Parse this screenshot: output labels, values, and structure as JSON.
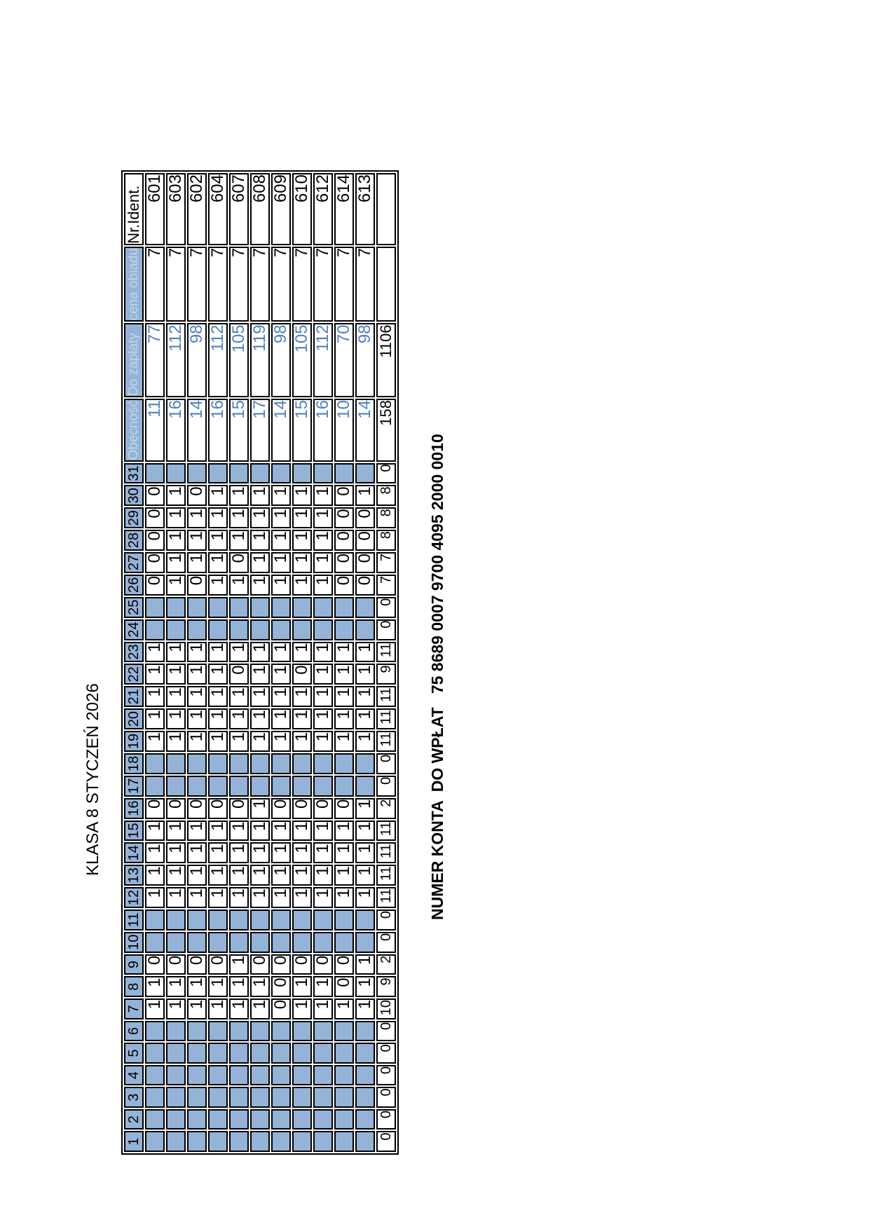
{
  "page": {
    "title": "KLASA 8 STYCZEŃ 2026",
    "footer": "NUMER KONTA  DO WPŁAT   75 8689 0007 9700 4095 2000 0010"
  },
  "colors": {
    "closed_cell_bg": "#95B3D7",
    "section_header_bg": "#95B3D7",
    "section_header_text": "#C2D4E9",
    "blue_value_text": "#4F81BD",
    "grid_border": "#000000",
    "black_text": "#000000"
  },
  "table": {
    "days": [
      1,
      2,
      3,
      4,
      5,
      6,
      7,
      8,
      9,
      10,
      11,
      12,
      13,
      14,
      15,
      16,
      17,
      18,
      19,
      20,
      21,
      22,
      23,
      24,
      25,
      26,
      27,
      28,
      29,
      30,
      31
    ],
    "closed_days": [
      1,
      2,
      3,
      4,
      5,
      6,
      10,
      11,
      17,
      18,
      24,
      25,
      31
    ],
    "column_headers": {
      "obecnosc": "Obecność",
      "do_zaplaty": "Do zapłaty",
      "cena_obiadu": "cena obiadu",
      "nr_ident": "Nr.Ident."
    },
    "students": [
      {
        "nr_ident": "601",
        "cena_obiadu": "7",
        "do_zaplaty": "77",
        "obecnosc": "11",
        "attendance": [
          null,
          null,
          null,
          null,
          null,
          null,
          1,
          1,
          0,
          null,
          null,
          1,
          1,
          1,
          1,
          0,
          null,
          null,
          1,
          1,
          1,
          1,
          1,
          null,
          null,
          0,
          0,
          0,
          0,
          0,
          null
        ]
      },
      {
        "nr_ident": "603",
        "cena_obiadu": "7",
        "do_zaplaty": "112",
        "obecnosc": "16",
        "attendance": [
          null,
          null,
          null,
          null,
          null,
          null,
          1,
          1,
          0,
          null,
          null,
          1,
          1,
          1,
          1,
          0,
          null,
          null,
          1,
          1,
          1,
          1,
          1,
          null,
          null,
          1,
          1,
          1,
          1,
          1,
          null
        ]
      },
      {
        "nr_ident": "602",
        "cena_obiadu": "7",
        "do_zaplaty": "98",
        "obecnosc": "14",
        "attendance": [
          null,
          null,
          null,
          null,
          null,
          null,
          1,
          1,
          0,
          null,
          null,
          1,
          1,
          1,
          1,
          0,
          null,
          null,
          1,
          1,
          1,
          1,
          1,
          null,
          null,
          0,
          1,
          1,
          1,
          0,
          null
        ]
      },
      {
        "nr_ident": "604",
        "cena_obiadu": "7",
        "do_zaplaty": "112",
        "obecnosc": "16",
        "attendance": [
          null,
          null,
          null,
          null,
          null,
          null,
          1,
          1,
          0,
          null,
          null,
          1,
          1,
          1,
          1,
          0,
          null,
          null,
          1,
          1,
          1,
          1,
          1,
          null,
          null,
          1,
          1,
          1,
          1,
          1,
          null
        ]
      },
      {
        "nr_ident": "607",
        "cena_obiadu": "7",
        "do_zaplaty": "105",
        "obecnosc": "15",
        "attendance": [
          null,
          null,
          null,
          null,
          null,
          null,
          1,
          1,
          1,
          null,
          null,
          1,
          1,
          1,
          1,
          0,
          null,
          null,
          1,
          1,
          1,
          0,
          1,
          null,
          null,
          1,
          0,
          1,
          1,
          1,
          null
        ]
      },
      {
        "nr_ident": "608",
        "cena_obiadu": "7",
        "do_zaplaty": "119",
        "obecnosc": "17",
        "attendance": [
          null,
          null,
          null,
          null,
          null,
          null,
          1,
          1,
          0,
          null,
          null,
          1,
          1,
          1,
          1,
          1,
          null,
          null,
          1,
          1,
          1,
          1,
          1,
          null,
          null,
          1,
          1,
          1,
          1,
          1,
          null
        ]
      },
      {
        "nr_ident": "609",
        "cena_obiadu": "7",
        "do_zaplaty": "98",
        "obecnosc": "14",
        "attendance": [
          null,
          null,
          null,
          null,
          null,
          null,
          0,
          0,
          0,
          null,
          null,
          1,
          1,
          1,
          1,
          0,
          null,
          null,
          1,
          1,
          1,
          1,
          1,
          null,
          null,
          1,
          1,
          1,
          1,
          1,
          null
        ]
      },
      {
        "nr_ident": "610",
        "cena_obiadu": "7",
        "do_zaplaty": "105",
        "obecnosc": "15",
        "attendance": [
          null,
          null,
          null,
          null,
          null,
          null,
          1,
          1,
          0,
          null,
          null,
          1,
          1,
          1,
          1,
          0,
          null,
          null,
          1,
          1,
          1,
          0,
          1,
          null,
          null,
          1,
          1,
          1,
          1,
          1,
          null
        ]
      },
      {
        "nr_ident": "612",
        "cena_obiadu": "7",
        "do_zaplaty": "112",
        "obecnosc": "16",
        "attendance": [
          null,
          null,
          null,
          null,
          null,
          null,
          1,
          1,
          0,
          null,
          null,
          1,
          1,
          1,
          1,
          0,
          null,
          null,
          1,
          1,
          1,
          1,
          1,
          null,
          null,
          1,
          1,
          1,
          1,
          1,
          null
        ]
      },
      {
        "nr_ident": "614",
        "cena_obiadu": "7",
        "do_zaplaty": "70",
        "obecnosc": "10",
        "attendance": [
          null,
          null,
          null,
          null,
          null,
          null,
          1,
          0,
          0,
          null,
          null,
          1,
          1,
          1,
          1,
          0,
          null,
          null,
          1,
          1,
          1,
          1,
          1,
          null,
          null,
          0,
          0,
          0,
          0,
          0,
          null
        ]
      },
      {
        "nr_ident": "613",
        "cena_obiadu": "7",
        "do_zaplaty": "98",
        "obecnosc": "14",
        "attendance": [
          null,
          null,
          null,
          null,
          null,
          null,
          1,
          1,
          1,
          null,
          null,
          1,
          1,
          1,
          1,
          1,
          null,
          null,
          1,
          1,
          1,
          1,
          1,
          null,
          null,
          0,
          0,
          0,
          0,
          1,
          null
        ]
      }
    ],
    "totals": {
      "per_day": [
        0,
        0,
        0,
        0,
        0,
        0,
        10,
        9,
        2,
        0,
        0,
        11,
        11,
        11,
        11,
        2,
        0,
        0,
        11,
        11,
        11,
        9,
        11,
        0,
        0,
        7,
        7,
        8,
        8,
        8,
        0
      ],
      "obecnosc": "158",
      "do_zaplaty": "1106"
    }
  }
}
